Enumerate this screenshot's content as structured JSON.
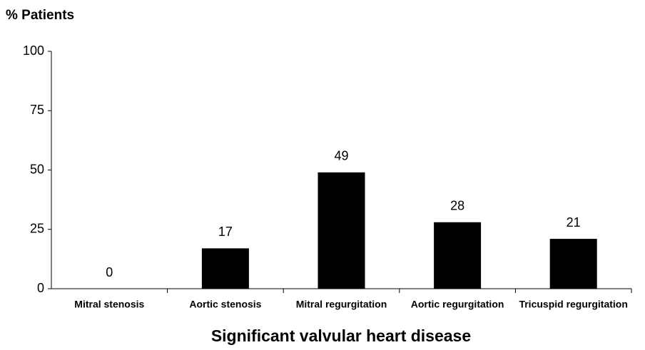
{
  "chart_data": {
    "type": "bar",
    "y_label": "% Patients",
    "x_label": "Significant valvular heart disease",
    "categories": [
      "Mitral stenosis",
      "Aortic stenosis",
      "Mitral regurgitation",
      "Aortic regurgitation",
      "Tricuspid regurgitation"
    ],
    "values": [
      0,
      17,
      49,
      28,
      21
    ],
    "color": "#000000",
    "ylim": [
      0,
      100
    ],
    "yticks": [
      0,
      25,
      50,
      75,
      100
    ],
    "grid": false
  }
}
